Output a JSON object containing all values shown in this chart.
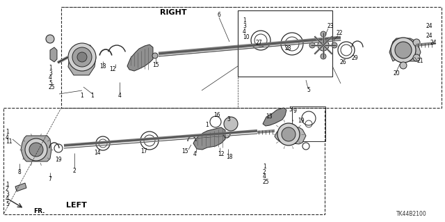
{
  "bg_color": "#ffffff",
  "diagram_code": "TK44B2100",
  "right_label": "RIGHT",
  "left_label": "LEFT",
  "fr_label": "FR.",
  "line_color": "#2a2a2a",
  "part_fill": "#c8c8c8",
  "part_dark": "#555555",
  "part_light": "#e8e8e8"
}
